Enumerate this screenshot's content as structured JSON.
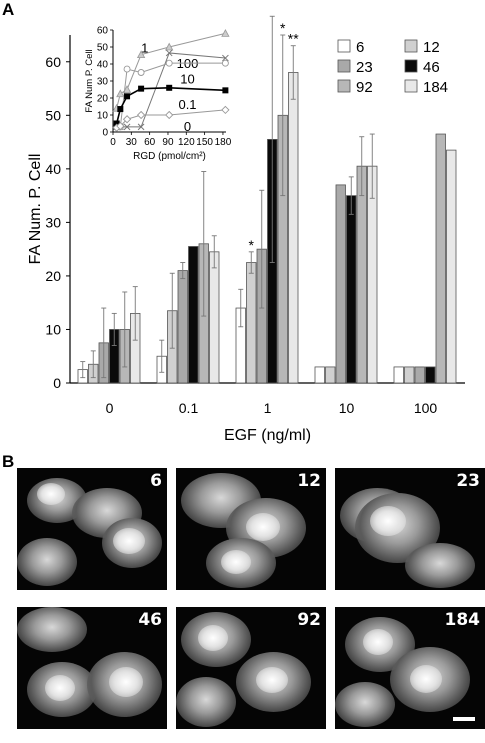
{
  "panels": {
    "a_label": "A",
    "b_label": "B"
  },
  "chart_data": [
    {
      "type": "bar",
      "categories": [
        "0",
        "0.1",
        "1",
        "10",
        "100"
      ],
      "xlabel": "EGF (ng/ml)",
      "ylabel": "FA Num. P. Cell",
      "ylim": [
        0,
        65
      ],
      "yticks": [
        0,
        10,
        20,
        30,
        40,
        50,
        60
      ],
      "legend_position": "top-right",
      "series": [
        {
          "name": "6",
          "color": "#ffffff",
          "values": [
            2.5,
            5,
            14,
            3,
            3
          ],
          "errors": [
            1.5,
            3,
            3.5,
            0,
            0
          ]
        },
        {
          "name": "12",
          "color": "#d0d0d0",
          "values": [
            3.5,
            13.5,
            22.5,
            3,
            3
          ],
          "errors": [
            2.5,
            7,
            2,
            0,
            0
          ]
        },
        {
          "name": "23",
          "color": "#a9a9a9",
          "values": [
            7.5,
            21,
            25,
            37,
            3
          ],
          "errors": [
            6.5,
            1.5,
            11,
            0,
            0
          ]
        },
        {
          "name": "46",
          "color": "#0a0a0a",
          "values": [
            10,
            25.5,
            45.5,
            35,
            3
          ],
          "errors": [
            3,
            0,
            23,
            3.5,
            0
          ]
        },
        {
          "name": "92",
          "color": "#b7b7b7",
          "values": [
            10,
            26,
            50,
            40.5,
            46.5
          ],
          "errors": [
            7,
            13.5,
            15,
            5.5,
            0
          ]
        },
        {
          "name": "184",
          "color": "#e8e8e8",
          "values": [
            13,
            24.5,
            58,
            40.5,
            43.5
          ],
          "errors": [
            5,
            3,
            5,
            6,
            0
          ]
        }
      ],
      "annotations": [
        {
          "category": "1",
          "series": "12",
          "text": "*"
        },
        {
          "category": "1",
          "series": "92",
          "text": "*"
        },
        {
          "category": "1",
          "series": "184",
          "text": "**"
        }
      ]
    },
    {
      "type": "line",
      "inset": true,
      "xlabel": "RGD (pmol/cm²)",
      "ylabel": "FA Num P. Cell",
      "x": [
        6,
        12,
        23,
        46,
        92,
        184
      ],
      "xticks": [
        0,
        30,
        60,
        90,
        120,
        150,
        180
      ],
      "xtick_labels": [
        "0",
        "30",
        "60",
        "90",
        "120",
        "150",
        "180"
      ],
      "xlim": [
        0,
        185
      ],
      "ylim": [
        0,
        60
      ],
      "yticks": [
        0,
        10,
        20,
        30,
        40,
        50,
        60
      ],
      "series": [
        {
          "name": "1",
          "marker": "triangle",
          "color": "#999999",
          "values": [
            14,
            22.5,
            25,
            45.5,
            50,
            58
          ],
          "label_pos": [
            52,
            49
          ]
        },
        {
          "name": "100",
          "marker": "cross",
          "color": "#777777",
          "values": [
            3,
            3,
            3,
            3,
            46.5,
            43.5
          ],
          "label_pos": [
            122,
            40
          ]
        },
        {
          "name": "10",
          "marker": "circle",
          "color": "#999999",
          "values": [
            3,
            3,
            37,
            35,
            40.5,
            40.5
          ],
          "label_pos": [
            122,
            31
          ]
        },
        {
          "name": "0.1",
          "marker": "square",
          "color": "#000000",
          "values": [
            5,
            13.5,
            21,
            25.5,
            26,
            24.5
          ],
          "label_pos": [
            122,
            16
          ]
        },
        {
          "name": "0",
          "marker": "diamond",
          "color": "#999999",
          "values": [
            2.5,
            3.5,
            7.5,
            10,
            10,
            13
          ],
          "label_pos": [
            122,
            3
          ]
        }
      ]
    }
  ],
  "micrographs": [
    {
      "label": "6"
    },
    {
      "label": "12"
    },
    {
      "label": "23"
    },
    {
      "label": "46"
    },
    {
      "label": "92"
    },
    {
      "label": "184"
    }
  ]
}
